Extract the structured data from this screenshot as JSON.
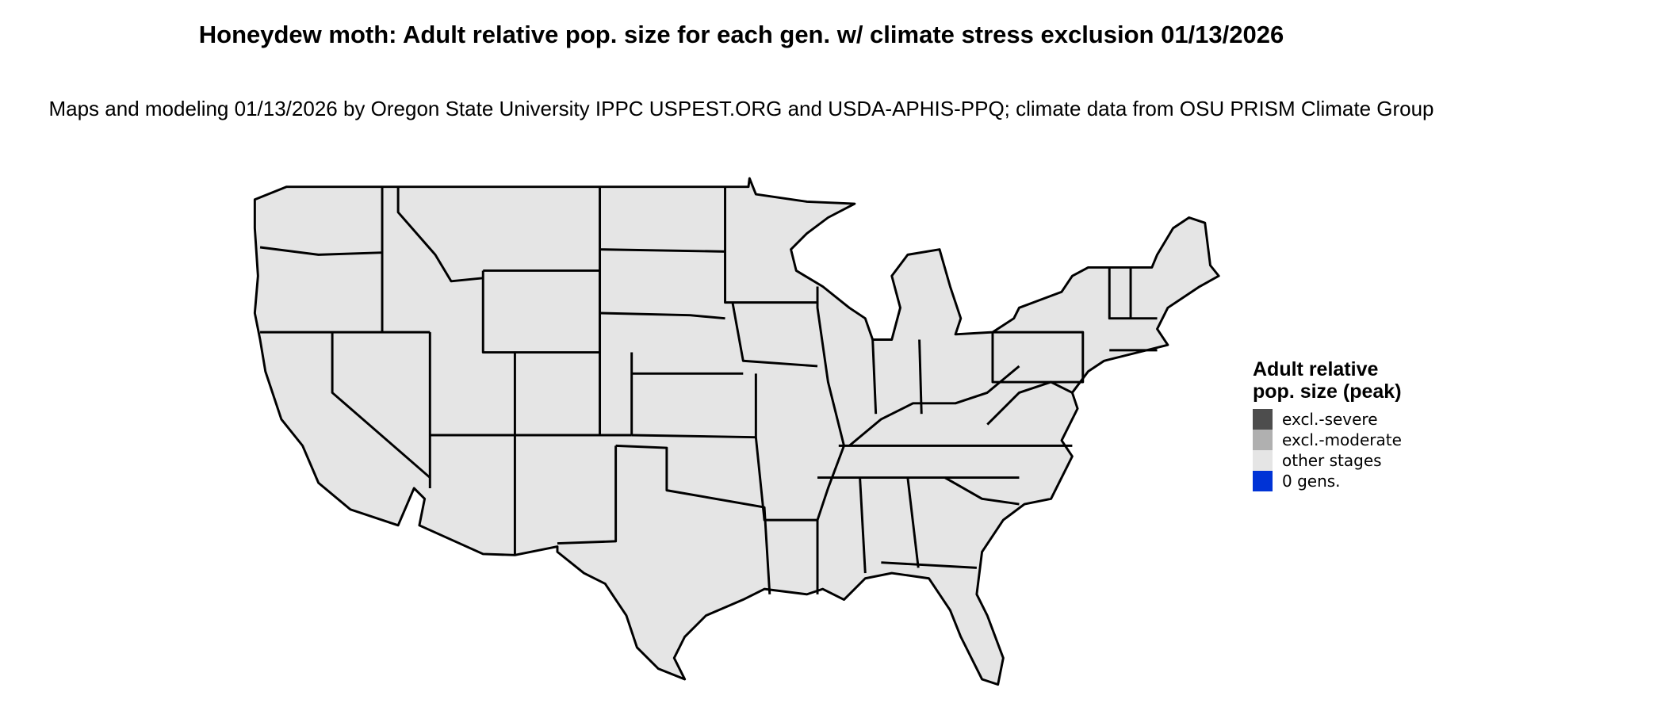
{
  "title": "Honeydew moth: Adult relative pop. size for each gen. w/ climate stress exclusion 01/13/2026",
  "subtitle": "Maps and modeling 01/13/2026 by Oregon State University IPPC USPEST.ORG and USDA-APHIS-PPQ; climate data from OSU PRISM Climate Group",
  "map": {
    "region": "Contiguous United States",
    "fill_color": "#e5e5e5",
    "border_color": "#000000"
  },
  "legend": {
    "title": "Adult relative pop. size (peak)",
    "items": [
      {
        "label": "excl.-severe",
        "color": "#4d4d4d"
      },
      {
        "label": "excl.-moderate",
        "color": "#b0b0b0"
      },
      {
        "label": "other stages",
        "color": "#e5e5e5"
      },
      {
        "label": "0 gens.",
        "color": "#0033d6"
      }
    ]
  }
}
